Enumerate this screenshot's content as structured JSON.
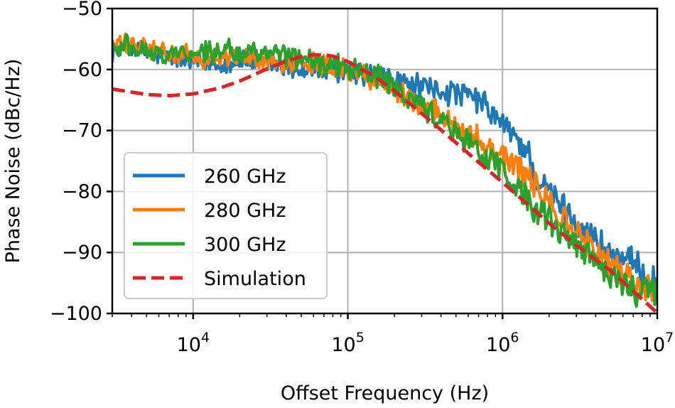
{
  "chart_data": {
    "type": "line",
    "title": "",
    "xlabel": "Offset Frequency (Hz)",
    "ylabel": "Phase Noise (dBc/Hz)",
    "xscale": "log",
    "xlim": [
      3000,
      10000000
    ],
    "ylim": [
      -100,
      -50
    ],
    "x_ticks": [
      {
        "value": 10000,
        "base": "10",
        "exp": "4"
      },
      {
        "value": 100000,
        "base": "10",
        "exp": "5"
      },
      {
        "value": 1000000,
        "base": "10",
        "exp": "6"
      },
      {
        "value": 10000000,
        "base": "10",
        "exp": "7"
      }
    ],
    "y_ticks": [
      {
        "value": -50,
        "label": "−50"
      },
      {
        "value": -60,
        "label": "−60"
      },
      {
        "value": -70,
        "label": "−70"
      },
      {
        "value": -80,
        "label": "−80"
      },
      {
        "value": -90,
        "label": "−90"
      },
      {
        "value": -100,
        "label": "−100"
      }
    ],
    "grid": true,
    "legend_position": "bottom-left",
    "series": [
      {
        "name": "260 GHz",
        "color": "#1f77b4",
        "style": "solid",
        "x": [
          3000,
          4000,
          5000,
          7000,
          10000,
          15000,
          20000,
          30000,
          50000,
          70000,
          100000,
          150000,
          200000,
          300000,
          500000,
          700000,
          1000000,
          1300000,
          1500000,
          1600000,
          2000000,
          3000000,
          5000000,
          7000000,
          10000000
        ],
        "y": [
          -57,
          -56.5,
          -57.5,
          -58,
          -59,
          -59,
          -58.5,
          -59,
          -60,
          -60.5,
          -60.5,
          -61,
          -62,
          -63,
          -64,
          -65,
          -69,
          -72,
          -74,
          -78,
          -80,
          -85,
          -90,
          -92,
          -95
        ]
      },
      {
        "name": "280 GHz",
        "color": "#ff7f0e",
        "style": "solid",
        "x": [
          3000,
          4000,
          5000,
          7000,
          10000,
          15000,
          20000,
          30000,
          50000,
          70000,
          100000,
          150000,
          200000,
          300000,
          500000,
          700000,
          1000000,
          1300000,
          1500000,
          2000000,
          3000000,
          5000000,
          7000000,
          10000000
        ],
        "y": [
          -56,
          -56,
          -56.5,
          -57.5,
          -58,
          -58,
          -58,
          -58.5,
          -59,
          -59,
          -60,
          -61.5,
          -63,
          -66,
          -69,
          -71.5,
          -74,
          -76.5,
          -78,
          -82,
          -87,
          -92,
          -95,
          -96
        ]
      },
      {
        "name": "300 GHz",
        "color": "#2ca02c",
        "style": "solid",
        "x": [
          3000,
          4000,
          5000,
          7000,
          10000,
          15000,
          20000,
          30000,
          50000,
          70000,
          100000,
          150000,
          200000,
          300000,
          500000,
          700000,
          1000000,
          1300000,
          1500000,
          2000000,
          3000000,
          5000000,
          7000000,
          10000000
        ],
        "y": [
          -56,
          -56,
          -57,
          -57.5,
          -57,
          -57,
          -57,
          -57.5,
          -58,
          -59,
          -59.5,
          -61,
          -63,
          -66,
          -70,
          -73.5,
          -76.5,
          -80,
          -82,
          -85,
          -89,
          -94,
          -96,
          -97
        ]
      },
      {
        "name": "Simulation",
        "color": "#d62728",
        "style": "dashed",
        "x": [
          3000,
          5000,
          7000,
          10000,
          15000,
          20000,
          30000,
          40000,
          50000,
          60000,
          70000,
          80000,
          100000,
          150000,
          200000,
          300000,
          500000,
          700000,
          1000000,
          2000000,
          3000000,
          5000000,
          10000000
        ],
        "y": [
          -63.2,
          -64.1,
          -64.3,
          -64.0,
          -63.0,
          -61.9,
          -59.9,
          -58.6,
          -57.9,
          -57.6,
          -57.6,
          -57.8,
          -58.7,
          -61.2,
          -63.5,
          -67.2,
          -72.0,
          -75.2,
          -78.5,
          -85.2,
          -88.8,
          -93.0,
          -99.9
        ]
      }
    ]
  }
}
